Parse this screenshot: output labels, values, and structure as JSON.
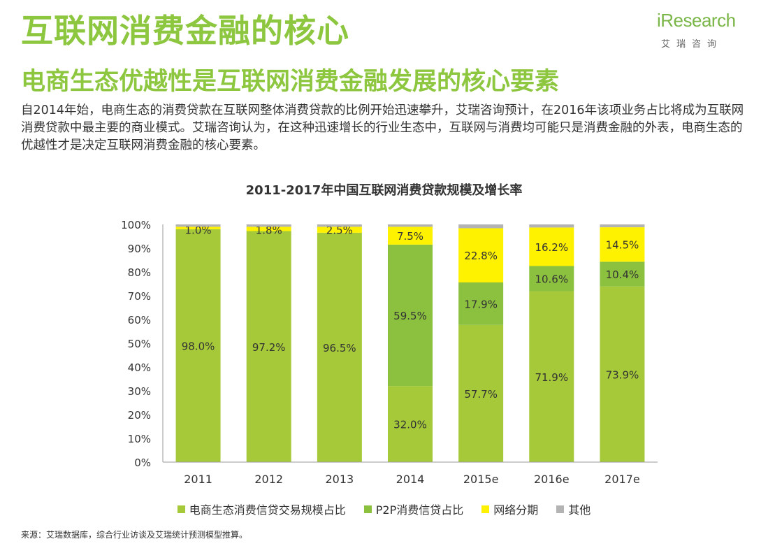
{
  "header": {
    "title": "互联网消费金融的核心",
    "subtitle": "电商生态优越性是互联网消费金融发展的核心要素"
  },
  "logo": {
    "main": "iResearch",
    "sub": "艾瑞咨询"
  },
  "intro_text": "自2014年始，电商生态的消费贷款在互联网整体消费贷款的比例开始迅速攀升，艾瑞咨询预计，在2016年该项业务占比将成为互联网消费贷款中最主要的商业模式。艾瑞咨询认为，在这种迅速增长的行业生态中，互联网与消费均可能只是消费金融的外表，电商生态的优越性才是决定互联网消费金融的核心要素。",
  "chart_data": {
    "type": "bar",
    "stacked": true,
    "title": "2011-2017年中国互联网消费贷款规模及增长率",
    "categories": [
      "2011",
      "2012",
      "2013",
      "2014",
      "2015e",
      "2016e",
      "2017e"
    ],
    "ylim": [
      0,
      100
    ],
    "y_ticks": [
      "0%",
      "10%",
      "20%",
      "30%",
      "40%",
      "50%",
      "60%",
      "70%",
      "80%",
      "90%",
      "100%"
    ],
    "series": [
      {
        "name": "电商生态消费信贷交易规模占比",
        "color": "#a6c93a",
        "values": [
          98.0,
          97.2,
          96.5,
          32.0,
          57.7,
          71.9,
          73.9
        ],
        "labels": [
          "98.0%",
          "97.2%",
          "96.5%",
          "32.0%",
          "57.7%",
          "71.9%",
          "73.9%"
        ]
      },
      {
        "name": "P2P消费信贷占比",
        "color": "#8bc13f",
        "values": [
          0,
          0,
          0,
          59.5,
          17.9,
          10.6,
          10.4
        ],
        "labels": [
          "",
          "",
          "",
          "59.5%",
          "17.9%",
          "10.6%",
          "10.4%"
        ]
      },
      {
        "name": "网络分期",
        "color": "#fff200",
        "values": [
          1.0,
          1.8,
          2.5,
          7.5,
          22.8,
          16.2,
          14.5
        ],
        "labels": [
          "1.0%",
          "1.8%",
          "2.5%",
          "7.5%",
          "22.8%",
          "16.2%",
          "14.5%"
        ]
      },
      {
        "name": "其他",
        "color": "#b3b3b3",
        "values": [
          1.0,
          1.0,
          1.0,
          1.0,
          1.6,
          1.3,
          1.2
        ],
        "labels": [
          "",
          "",
          "",
          "",
          "",
          "",
          ""
        ]
      }
    ],
    "grid": false,
    "legend_position": "bottom"
  },
  "source": "来源：艾瑞数据库，综合行业访谈及艾瑞统计预测模型推算。"
}
